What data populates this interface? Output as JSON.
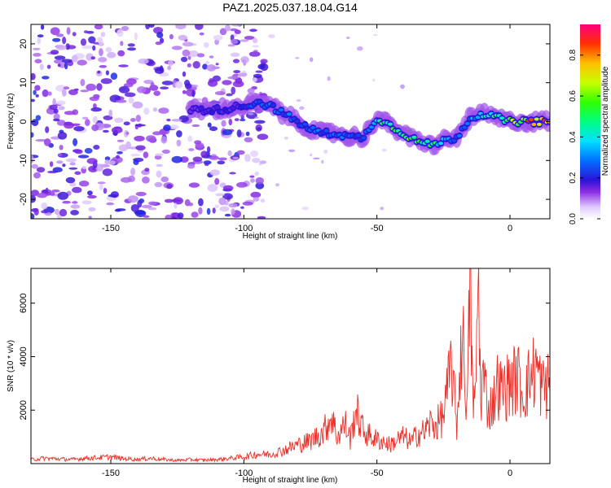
{
  "figure_title": "PAZ1.2025.037.18.04.G14",
  "chart_data": [
    {
      "type": "heatmap",
      "title": "PAZ1.2025.037.18.04.G14",
      "xlabel": "Height of straight line (km)",
      "ylabel": "Frequency (Hz)",
      "xlim": [
        -180,
        15
      ],
      "ylim": [
        -25,
        25
      ],
      "xticks": [
        -150,
        -100,
        -50,
        0
      ],
      "yticks": [
        -20,
        -10,
        0,
        10,
        20
      ],
      "colorbar": {
        "label": "Normalized spectral amplitude",
        "ticks": [
          0.0,
          0.2,
          0.4,
          0.6,
          0.8
        ],
        "range": [
          0,
          0.95
        ]
      },
      "ridge": {
        "x": [
          -120,
          -110,
          -100,
          -95,
          -90,
          -85,
          -80,
          -75,
          -70,
          -65,
          -60,
          -55,
          -50,
          -45,
          -40,
          -35,
          -30,
          -25,
          -20,
          -15,
          -10,
          -5,
          0,
          5,
          10,
          15
        ],
        "frequency": [
          3,
          3,
          4,
          5,
          4,
          2,
          0,
          -2,
          -3,
          -3,
          -4,
          -4,
          1,
          -1,
          -3,
          -5,
          -6,
          -5,
          -4,
          1,
          2,
          1,
          0,
          0,
          0,
          0
        ],
        "amplitude": [
          0.15,
          0.2,
          0.2,
          0.3,
          0.3,
          0.3,
          0.3,
          0.3,
          0.3,
          0.3,
          0.3,
          0.25,
          0.45,
          0.55,
          0.6,
          0.65,
          0.55,
          0.4,
          0.3,
          0.35,
          0.45,
          0.5,
          0.65,
          0.8,
          0.9,
          0.9
        ]
      },
      "noise_region_x": [
        -180,
        -100
      ]
    },
    {
      "type": "line",
      "xlabel": "Height of straight line (km)",
      "ylabel": "SNR (10 * v/v)",
      "xlim": [
        -180,
        15
      ],
      "ylim": [
        0,
        7300
      ],
      "xticks": [
        -150,
        -100,
        -50,
        0
      ],
      "yticks": [
        2000,
        4000,
        6000
      ],
      "color": "#e8302a",
      "x": [
        -180,
        -175,
        -170,
        -165,
        -160,
        -155,
        -150,
        -145,
        -140,
        -135,
        -130,
        -125,
        -120,
        -115,
        -110,
        -105,
        -100,
        -95,
        -90,
        -85,
        -80,
        -75,
        -70,
        -67,
        -65,
        -62,
        -60,
        -58,
        -55,
        -52,
        -50,
        -47,
        -45,
        -42,
        -40,
        -37,
        -35,
        -32,
        -30,
        -28,
        -25,
        -23,
        -22,
        -20,
        -18,
        -16,
        -15,
        -14,
        -13,
        -12,
        -11,
        -10,
        -8,
        -6,
        -5,
        -3,
        0,
        3,
        5,
        8,
        10,
        12,
        15
      ],
      "y": [
        150,
        200,
        180,
        150,
        200,
        220,
        250,
        180,
        160,
        200,
        150,
        120,
        150,
        130,
        150,
        200,
        250,
        350,
        350,
        500,
        700,
        850,
        1200,
        1800,
        1000,
        1500,
        900,
        2000,
        1200,
        1000,
        900,
        800,
        700,
        900,
        1000,
        800,
        1100,
        1200,
        1500,
        1400,
        1800,
        3000,
        3800,
        1400,
        5000,
        2000,
        7300,
        2500,
        2200,
        7100,
        2500,
        3300,
        2000,
        2400,
        3000,
        2700,
        3000,
        3200,
        2600,
        3300,
        3600,
        2800,
        3000
      ]
    }
  ]
}
